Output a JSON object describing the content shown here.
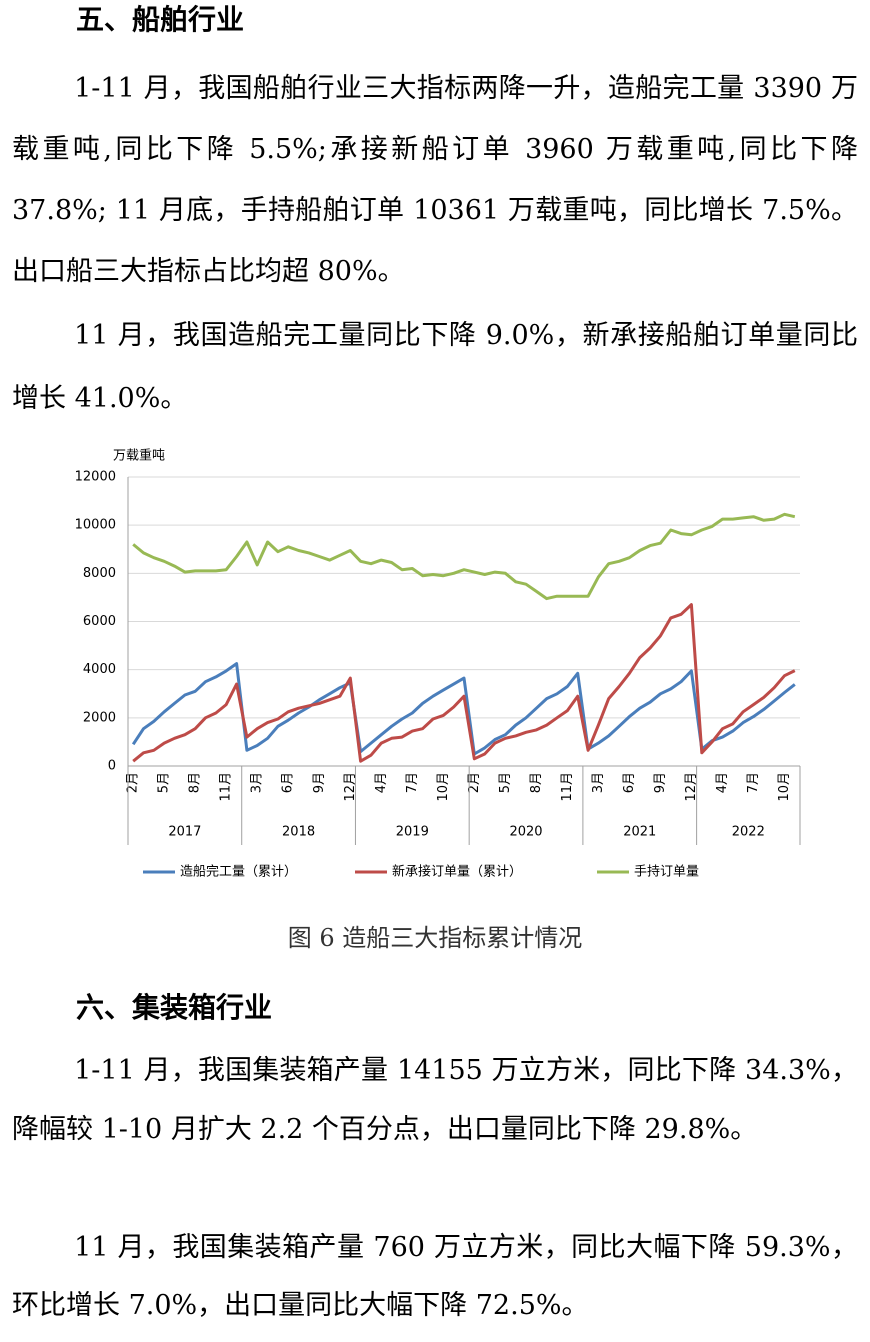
{
  "sections": [
    {
      "heading": "五、船舶行业",
      "paragraphs": [
        "1-11 月，我国船舶行业三大指标两降一升，造船完工量 3390 万载重吨,同比下降 5.5%;承接新船订单 3960 万载重吨,同比下降 37.8%; 11 月底，手持船舶订单 10361 万载重吨，同比增长 7.5%。出口船三大指标占比均超 80%。",
        "11 月，我国造船完工量同比下降 9.0%，新承接船舶订单量同比增长 41.0%。"
      ]
    },
    {
      "heading": "六、集装箱行业",
      "paragraphs": [
        "1-11 月，我国集装箱产量 14155 万立方米，同比下降 34.3%，降幅较 1-10 月扩大 2.2 个百分点，出口量同比下降 29.8%。",
        "11 月，我国集装箱产量 760 万立方米，同比大幅下降 59.3%，环比增长 7.0%，出口量同比大幅下降 72.5%。"
      ]
    }
  ],
  "figure": {
    "caption": "图 6 造船三大指标累计情况"
  },
  "chart_data": {
    "type": "line",
    "y_label": "万载重吨",
    "categories": [
      "2月",
      null,
      null,
      "5月",
      null,
      null,
      "8月",
      null,
      null,
      "11月",
      null,
      null,
      "3月",
      null,
      null,
      "6月",
      null,
      null,
      "9月",
      null,
      null,
      "12月",
      null,
      null,
      "4月",
      null,
      null,
      "7月",
      null,
      null,
      "10月",
      null,
      null,
      "2月",
      null,
      null,
      "5月",
      null,
      null,
      "8月",
      null,
      null,
      "11月",
      null,
      null,
      "3月",
      null,
      null,
      "6月",
      null,
      null,
      "9月",
      null,
      null,
      "12月",
      null,
      null,
      "4月",
      null,
      null,
      "7月",
      null,
      null,
      "10月",
      null
    ],
    "groups": [
      "2017",
      "2018",
      "2019",
      "2020",
      "2021",
      "2022"
    ],
    "ylim": [
      0,
      12000
    ],
    "yticks": [
      0,
      2000,
      4000,
      6000,
      8000,
      10000,
      12000
    ],
    "grid": true,
    "series": [
      {
        "name": "造船完工量（累计）",
        "color": "#4a7ebb",
        "values": [
          900,
          1550,
          1850,
          2250,
          2600,
          2950,
          3100,
          3500,
          3700,
          3950,
          4250,
          650,
          850,
          1150,
          1650,
          1900,
          2200,
          2450,
          2750,
          3000,
          3250,
          3450,
          600,
          950,
          1300,
          1650,
          1950,
          2200,
          2600,
          2900,
          3150,
          3400,
          3650,
          500,
          750,
          1100,
          1300,
          1700,
          2000,
          2400,
          2800,
          3000,
          3300,
          3850,
          700,
          950,
          1250,
          1650,
          2050,
          2400,
          2650,
          3000,
          3200,
          3500,
          3950,
          700,
          1050,
          1200,
          1450,
          1800,
          2050,
          2350,
          2700,
          3050,
          3390
        ]
      },
      {
        "name": "新承接订单量（累计）",
        "color": "#be4b48",
        "values": [
          200,
          550,
          650,
          950,
          1150,
          1300,
          1550,
          2000,
          2200,
          2550,
          3400,
          1200,
          1550,
          1800,
          1950,
          2250,
          2400,
          2500,
          2600,
          2750,
          2900,
          3650,
          200,
          450,
          950,
          1150,
          1200,
          1450,
          1550,
          1950,
          2100,
          2450,
          2900,
          300,
          500,
          950,
          1150,
          1250,
          1400,
          1500,
          1700,
          2000,
          2300,
          2900,
          650,
          1700,
          2800,
          3300,
          3850,
          4500,
          4900,
          5400,
          6150,
          6300,
          6700,
          550,
          1000,
          1550,
          1750,
          2250,
          2550,
          2850,
          3250,
          3750,
          3960
        ]
      },
      {
        "name": "手持订单量",
        "color": "#98b954",
        "values": [
          9200,
          8850,
          8650,
          8500,
          8300,
          8050,
          8100,
          8100,
          8100,
          8150,
          8700,
          9300,
          8350,
          9300,
          8900,
          9100,
          8950,
          8850,
          8700,
          8550,
          8750,
          8950,
          8500,
          8400,
          8550,
          8450,
          8150,
          8200,
          7900,
          7950,
          7900,
          8000,
          8150,
          8050,
          7950,
          8050,
          8000,
          7650,
          7550,
          7250,
          6950,
          7050,
          7050,
          7050,
          7050,
          7850,
          8400,
          8500,
          8650,
          8950,
          9150,
          9250,
          9800,
          9650,
          9600,
          9800,
          9950,
          10250,
          10250,
          10300,
          10350,
          10200,
          10250,
          10450,
          10350
        ]
      }
    ]
  }
}
